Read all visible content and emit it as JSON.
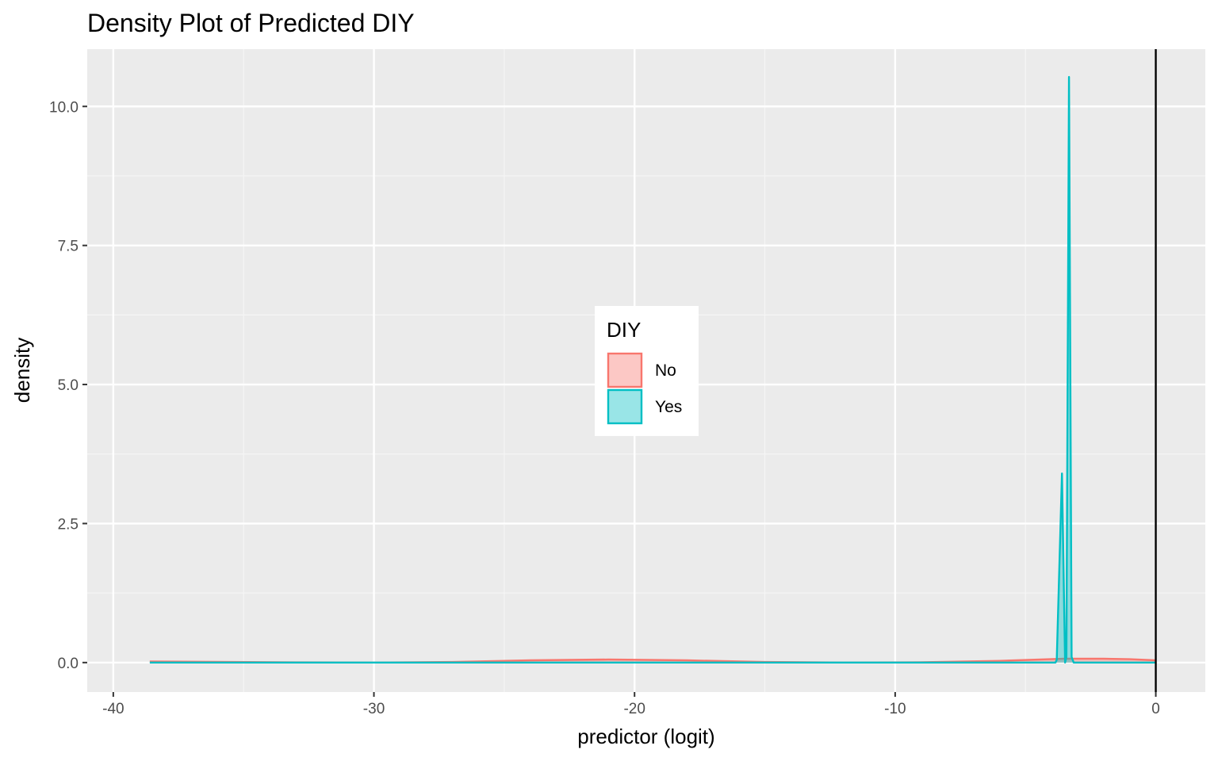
{
  "chart_data": {
    "type": "area",
    "title": "Density Plot of Predicted DIY",
    "xlabel": "predictor (logit)",
    "ylabel": "density",
    "xlim": [
      -41,
      1.9
    ],
    "ylim": [
      -0.53,
      11.03
    ],
    "x_ticks": [
      -40,
      -30,
      -20,
      -10,
      0
    ],
    "x_tick_labels": [
      "-40",
      "-30",
      "-20",
      "-10",
      "0"
    ],
    "y_ticks": [
      0,
      2.5,
      5,
      7.5,
      10
    ],
    "y_tick_labels": [
      "0.0",
      "2.5",
      "5.0",
      "7.5",
      "10.0"
    ],
    "x_minor": [
      -35,
      -25,
      -15,
      -5
    ],
    "y_minor": [
      1.25,
      3.75,
      6.25,
      8.75
    ],
    "grid": true,
    "vline": {
      "x": 0,
      "color": "#000000"
    },
    "legend": {
      "title": "DIY",
      "position": "center",
      "items": [
        {
          "label": "No",
          "color": "#F8766D"
        },
        {
          "label": "Yes",
          "color": "#00BFC4"
        }
      ]
    },
    "series": [
      {
        "name": "No",
        "color": "#F8766D",
        "points": [
          [
            -38.6,
            0.02
          ],
          [
            -36,
            0.012
          ],
          [
            -33,
            0.003
          ],
          [
            -30,
            0.0
          ],
          [
            -27,
            0.01
          ],
          [
            -24,
            0.04
          ],
          [
            -21,
            0.055
          ],
          [
            -18,
            0.04
          ],
          [
            -15,
            0.01
          ],
          [
            -12,
            0.0
          ],
          [
            -9,
            0.005
          ],
          [
            -6,
            0.03
          ],
          [
            -3.5,
            0.07
          ],
          [
            -2,
            0.07
          ],
          [
            -1,
            0.06
          ],
          [
            0,
            0.04
          ]
        ]
      },
      {
        "name": "Yes",
        "color": "#00BFC4",
        "points": [
          [
            -38.6,
            0.0
          ],
          [
            -3.85,
            0.0
          ],
          [
            -3.8,
            0.05
          ],
          [
            -3.6,
            3.4
          ],
          [
            -3.48,
            0.0
          ],
          [
            -3.43,
            0.1
          ],
          [
            -3.33,
            10.53
          ],
          [
            -3.23,
            0.1
          ],
          [
            -3.15,
            0.0
          ],
          [
            0,
            0.0
          ]
        ]
      }
    ]
  },
  "colors": {
    "panel_background": "#EBEBEB",
    "grid_major": "#FFFFFF",
    "grid_minor": "#F5F5F5",
    "tick_text": "#4D4D4D",
    "tick_mark": "#333333"
  }
}
